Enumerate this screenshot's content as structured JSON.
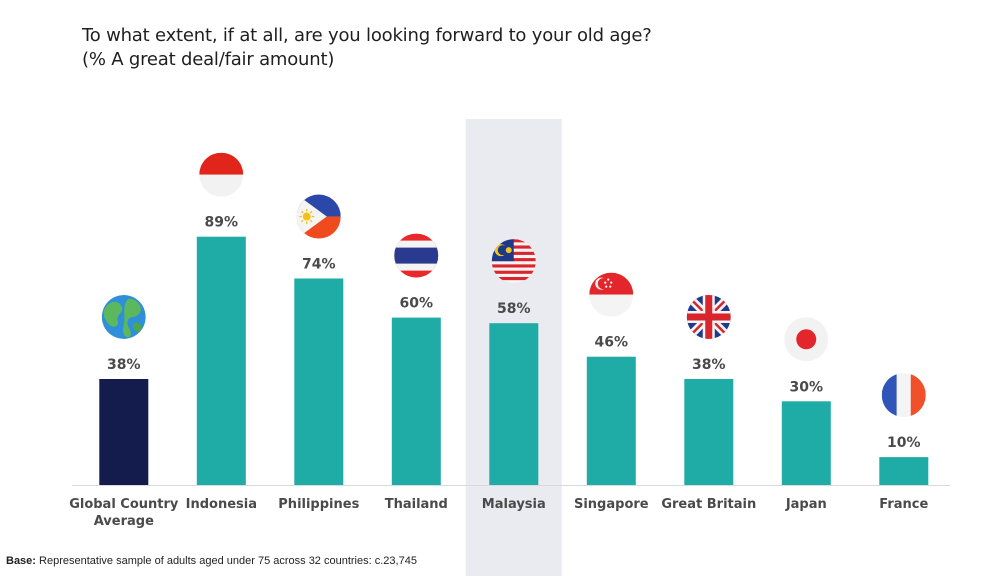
{
  "header": {
    "title_line1": "To what extent, if at all, are you looking forward to your old age?",
    "title_line2": "(% A great deal/fair amount)"
  },
  "footer": {
    "base_label": "Base:",
    "base_text": "Representative sample of adults aged under 75 across 32 countries: c.23,745"
  },
  "colors": {
    "global_bar": "#141b4d",
    "country_bar": "#20aca6",
    "highlight_band": "#e9ebf0",
    "label_text": "#4a4a4a",
    "axis": "#d9d9d9"
  },
  "chart_data": {
    "type": "bar",
    "categories": [
      "Global Country Average",
      "Indonesia",
      "Philippines",
      "Thailand",
      "Malaysia",
      "Singapore",
      "Great Britain",
      "Japan",
      "France"
    ],
    "category_lines": [
      [
        "Global Country",
        "Average"
      ],
      [
        "Indonesia"
      ],
      [
        "Philippines"
      ],
      [
        "Thailand"
      ],
      [
        "Malaysia"
      ],
      [
        "Singapore"
      ],
      [
        "Great Britain"
      ],
      [
        "Japan"
      ],
      [
        "France"
      ]
    ],
    "values": [
      38,
      89,
      74,
      60,
      58,
      46,
      38,
      30,
      10
    ],
    "value_labels": [
      "38%",
      "89%",
      "74%",
      "60%",
      "58%",
      "46%",
      "38%",
      "30%",
      "10%"
    ],
    "highlighted_category": "Malaysia",
    "icons": [
      "globe-icon",
      "indonesia-flag-icon",
      "philippines-flag-icon",
      "thailand-flag-icon",
      "malaysia-flag-icon",
      "singapore-flag-icon",
      "great-britain-flag-icon",
      "japan-flag-icon",
      "france-flag-icon"
    ],
    "ylim": [
      0,
      100
    ],
    "grid": false,
    "legend": "none",
    "xlabel": "",
    "ylabel": ""
  }
}
